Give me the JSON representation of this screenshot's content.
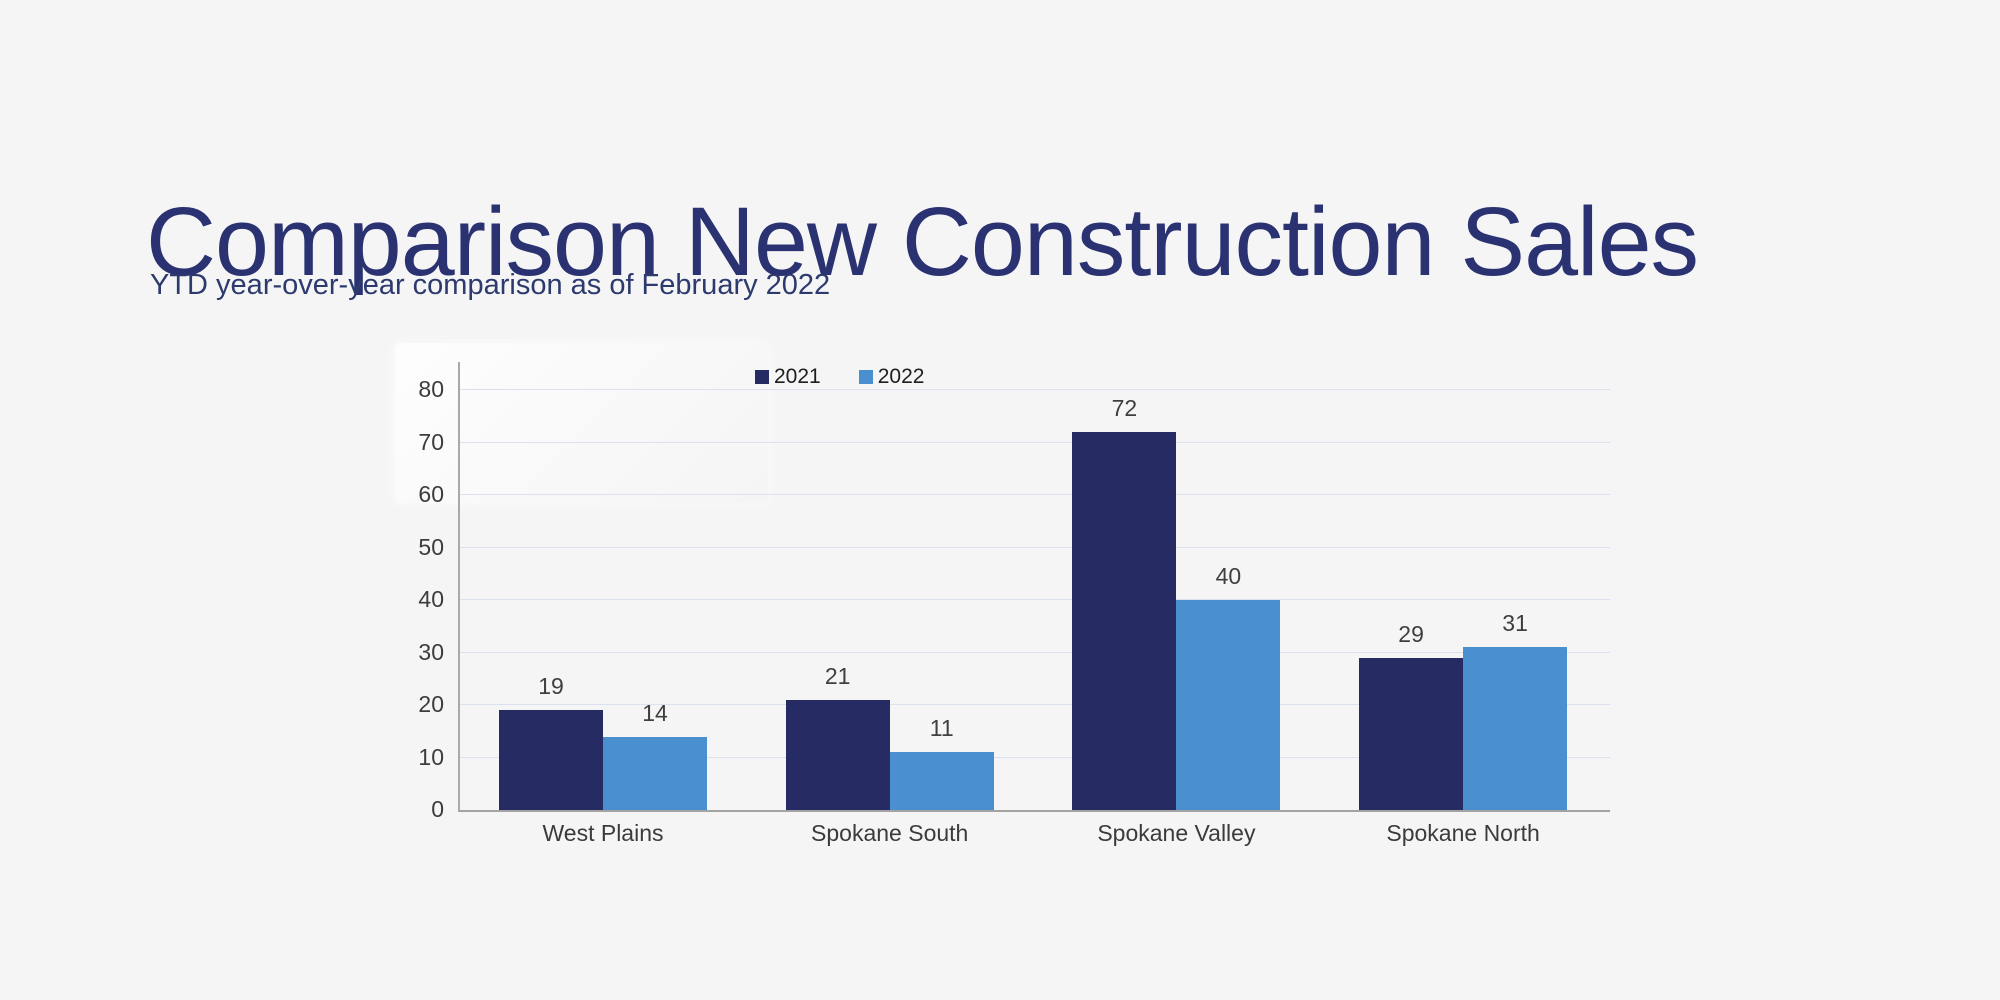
{
  "page": {
    "background": "#f5f5f6"
  },
  "header": {
    "title": "Comparison New Construction Sales",
    "subtitle": "YTD year-over-year comparison as of February 2022"
  },
  "chart_data": {
    "type": "bar",
    "title": "",
    "categories": [
      "West Plains",
      "Spokane South",
      "Spokane Valley",
      "Spokane North"
    ],
    "series": [
      {
        "name": "2021",
        "color": "#262b63",
        "values": [
          19,
          21,
          72,
          29
        ]
      },
      {
        "name": "2022",
        "color": "#4a90d0",
        "values": [
          14,
          11,
          40,
          31
        ]
      }
    ],
    "ylim": [
      0,
      80
    ],
    "yticks": [
      0,
      10,
      20,
      30,
      40,
      50,
      60,
      70,
      80
    ],
    "grid": true,
    "gridline_color": "#dbe1ee",
    "axis_color": "#a3a3a3",
    "legend_position": "top-center",
    "data_labels": true
  }
}
